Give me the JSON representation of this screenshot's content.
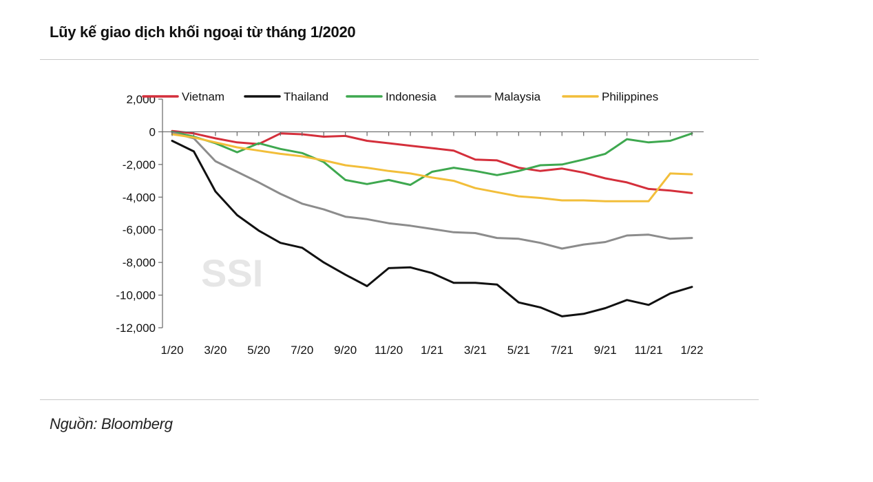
{
  "header": {
    "title": "Lũy kế giao dịch khối ngoại từ tháng 1/2020"
  },
  "footer": {
    "source": "Nguồn: Bloomberg"
  },
  "watermark": "SSI",
  "chart_data": {
    "type": "line",
    "title": "Lũy kế giao dịch khối ngoại từ tháng 1/2020",
    "xlabel": "",
    "ylabel": "",
    "ylim": [
      -12000,
      2000
    ],
    "yticks": [
      2000,
      0,
      -2000,
      -4000,
      -6000,
      -8000,
      -10000,
      -12000
    ],
    "ytick_labels": [
      "2,000",
      "0",
      "-2,000",
      "-4,000",
      "-6,000",
      "-8,000",
      "-10,000",
      "-12,000"
    ],
    "x_points": 25,
    "xticks": [
      0,
      2,
      4,
      6,
      8,
      10,
      12,
      14,
      16,
      18,
      20,
      22,
      24
    ],
    "xtick_labels": [
      "1/20",
      "3/20",
      "5/20",
      "7/20",
      "9/20",
      "11/20",
      "1/21",
      "3/21",
      "5/21",
      "7/21",
      "9/21",
      "11/21",
      "1/22"
    ],
    "legend_position": "top",
    "series": [
      {
        "name": "Vietnam",
        "color": "#d42f3b",
        "values": [
          50,
          -100,
          -400,
          -650,
          -750,
          -100,
          -150,
          -300,
          -250,
          -550,
          -700,
          -850,
          -1000,
          -1150,
          -1700,
          -1750,
          -2200,
          -2400,
          -2250,
          -2500,
          -2850,
          -3100,
          -3500,
          -3600,
          -3750
        ]
      },
      {
        "name": "Thailand",
        "color": "#111111",
        "values": [
          -550,
          -1200,
          -3650,
          -5100,
          -6050,
          -6800,
          -7100,
          -8000,
          -8750,
          -9450,
          -8350,
          -8300,
          -8650,
          -9250,
          -9250,
          -9350,
          -10450,
          -10750,
          -11300,
          -11150,
          -10800,
          -10300,
          -10600,
          -9900,
          -9500
        ]
      },
      {
        "name": "Indonesia",
        "color": "#3ea84f",
        "values": [
          0,
          -300,
          -700,
          -1250,
          -700,
          -1050,
          -1300,
          -1850,
          -2950,
          -3200,
          -2950,
          -3250,
          -2450,
          -2200,
          -2400,
          -2650,
          -2400,
          -2050,
          -2000,
          -1700,
          -1350,
          -450,
          -650,
          -550,
          -100
        ]
      },
      {
        "name": "Malaysia",
        "color": "#8c8c8c",
        "values": [
          -50,
          -400,
          -1800,
          -2450,
          -3100,
          -3800,
          -4400,
          -4750,
          -5200,
          -5350,
          -5600,
          -5750,
          -5950,
          -6150,
          -6200,
          -6500,
          -6550,
          -6800,
          -7150,
          -6900,
          -6750,
          -6350,
          -6300,
          -6550,
          -6500
        ]
      },
      {
        "name": "Philippines",
        "color": "#f2be3a",
        "values": [
          -150,
          -350,
          -650,
          -950,
          -1150,
          -1350,
          -1500,
          -1750,
          -2050,
          -2200,
          -2400,
          -2550,
          -2800,
          -3000,
          -3450,
          -3700,
          -3950,
          -4050,
          -4200,
          -4200,
          -4250,
          -4250,
          -4250,
          -2550,
          -2600
        ]
      }
    ]
  }
}
